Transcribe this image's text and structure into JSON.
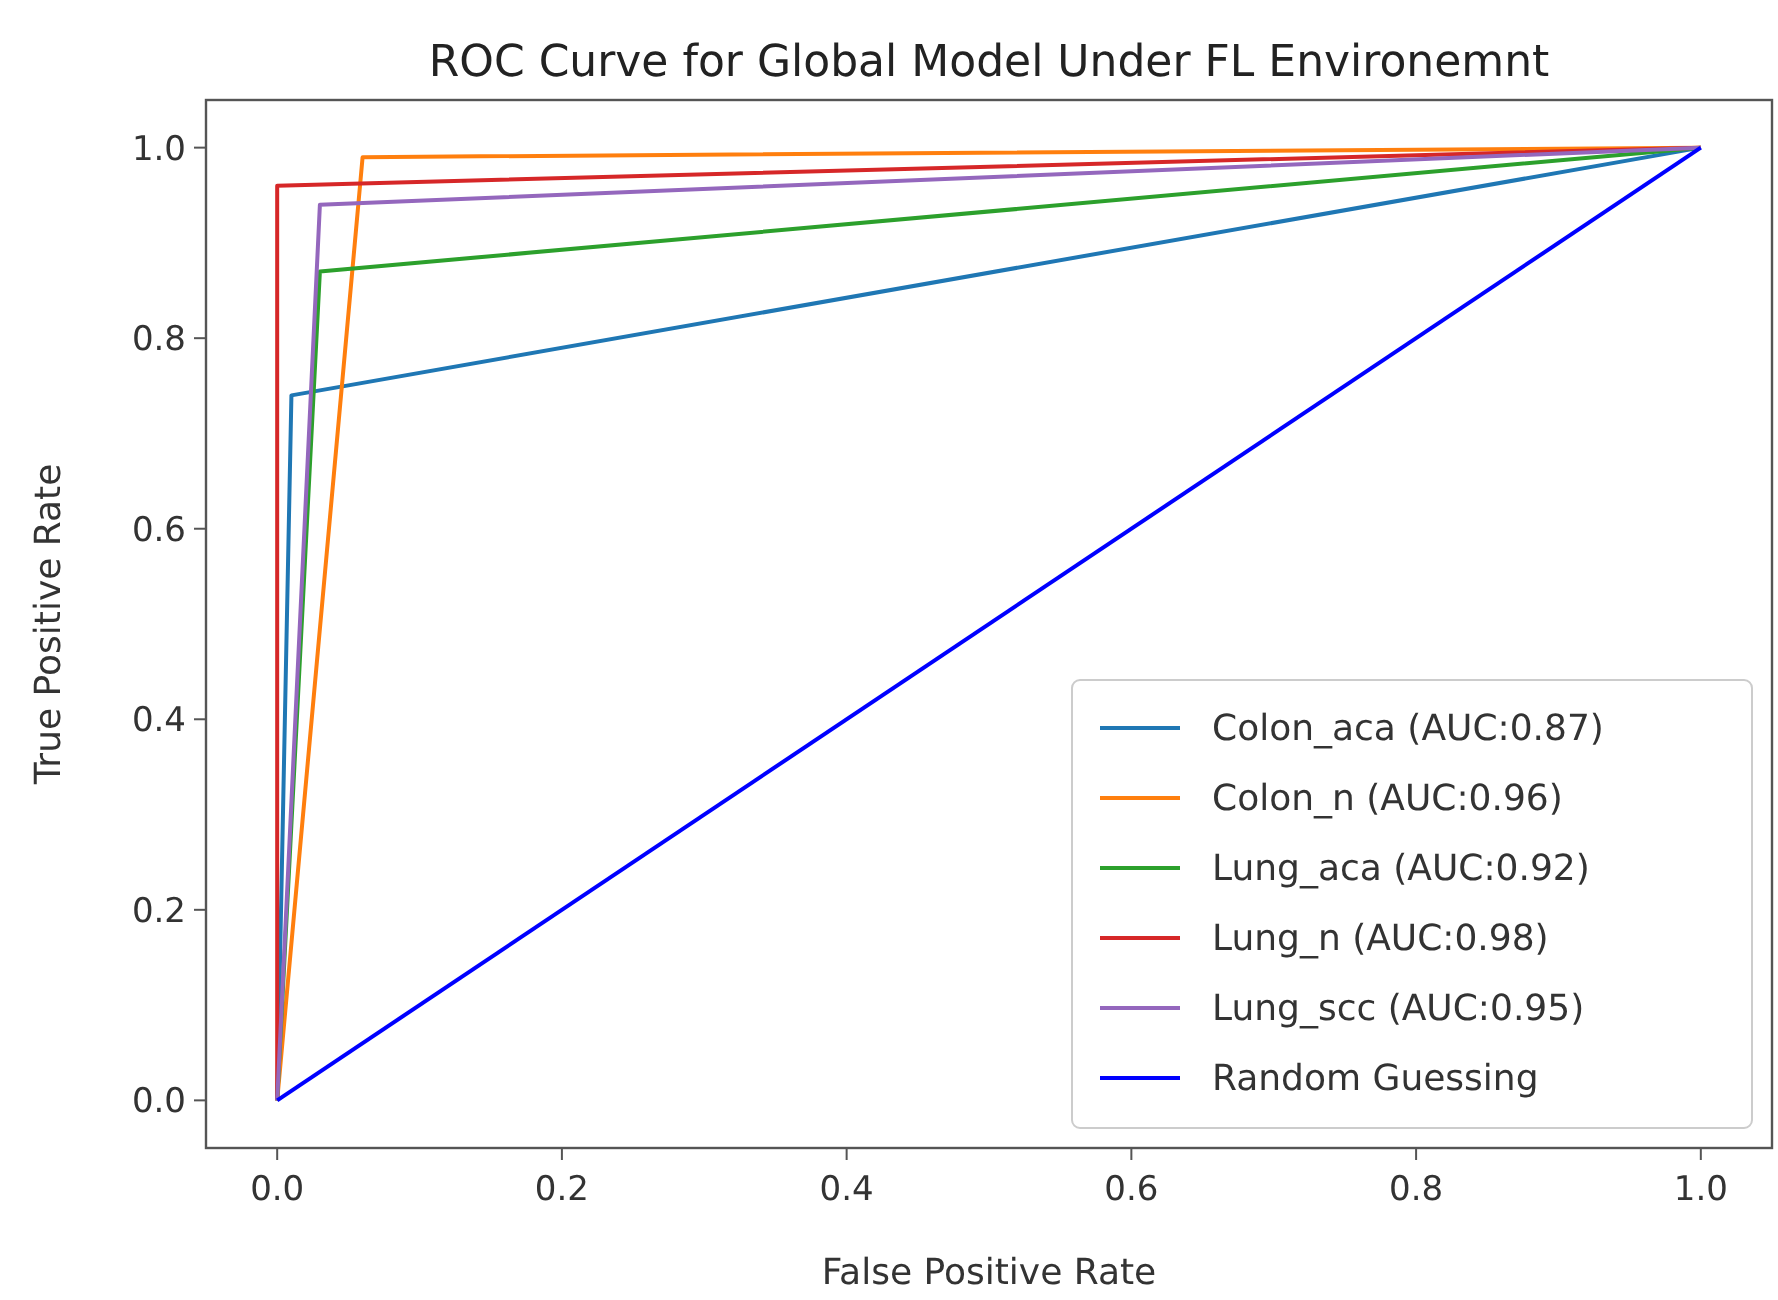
{
  "chart_data": {
    "type": "line",
    "title": "ROC Curve for Global Model Under FL Environemnt",
    "xlabel": "False Positive Rate",
    "ylabel": "True Positive Rate",
    "xlim": [
      -0.05,
      1.05
    ],
    "ylim": [
      -0.05,
      1.05
    ],
    "xticks": [
      {
        "value": 0,
        "label": "0.0"
      },
      {
        "value": 0.2,
        "label": "0.2"
      },
      {
        "value": 0.4,
        "label": "0.4"
      },
      {
        "value": 0.6,
        "label": "0.6"
      },
      {
        "value": 0.8,
        "label": "0.8"
      },
      {
        "value": 1,
        "label": "1.0"
      }
    ],
    "yticks": [
      {
        "value": 0,
        "label": "0.0"
      },
      {
        "value": 0.2,
        "label": "0.2"
      },
      {
        "value": 0.4,
        "label": "0.4"
      },
      {
        "value": 0.6,
        "label": "0.6"
      },
      {
        "value": 0.8,
        "label": "0.8"
      },
      {
        "value": 1,
        "label": "1.0"
      }
    ],
    "grid": false,
    "legend": "bottom right",
    "marker": "none",
    "line_style": "solid",
    "series": [
      {
        "name": "Colon_aca (AUC:0.87)",
        "color": "#1f77b4",
        "x": [
          0,
          0.01,
          1
        ],
        "values": [
          0,
          0.74,
          1
        ]
      },
      {
        "name": "Colon_n (AUC:0.96)",
        "color": "#ff7f0e",
        "x": [
          0,
          0.06,
          1
        ],
        "values": [
          0,
          0.99,
          1
        ]
      },
      {
        "name": "Lung_aca (AUC:0.92)",
        "color": "#2ca02c",
        "x": [
          0,
          0.03,
          1
        ],
        "values": [
          0,
          0.87,
          1
        ]
      },
      {
        "name": "Lung_n (AUC:0.98)",
        "color": "#d62728",
        "x": [
          0,
          0.0,
          1
        ],
        "values": [
          0,
          0.96,
          1
        ]
      },
      {
        "name": "Lung_scc (AUC:0.95)",
        "color": "#9467bd",
        "x": [
          0,
          0.03,
          1
        ],
        "values": [
          0,
          0.94,
          1
        ]
      },
      {
        "name": "Random Guessing",
        "color": "#0000ff",
        "x": [
          0,
          1
        ],
        "values": [
          0,
          1
        ]
      }
    ]
  }
}
